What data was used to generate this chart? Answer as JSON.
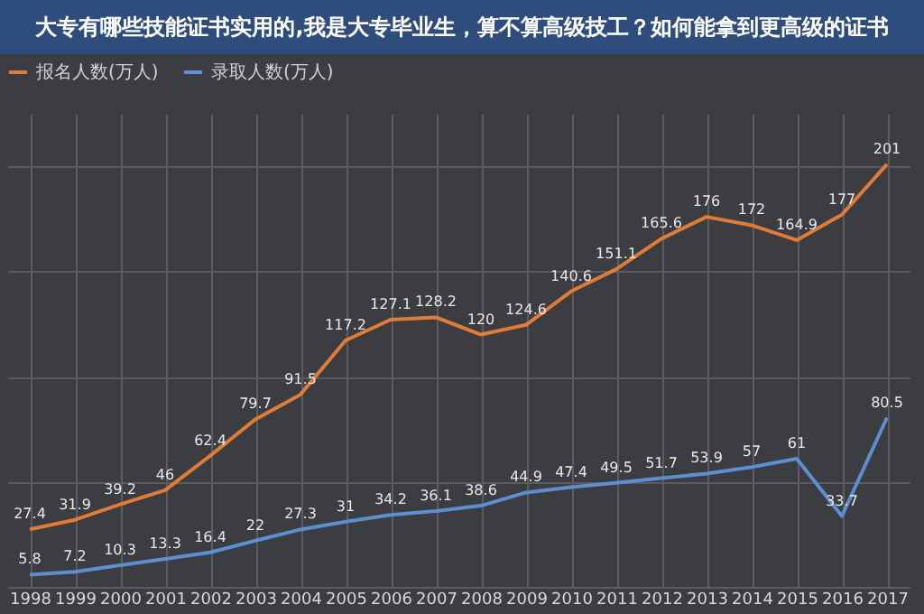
{
  "chart_data": {
    "type": "line",
    "title": "大专有哪些技能证书实用的,我是大专毕业生，算不算高级技工？如何能拿到更高级的证书",
    "categories": [
      "1998",
      "1999",
      "2000",
      "2001",
      "2002",
      "2003",
      "2004",
      "2005",
      "2006",
      "2007",
      "2008",
      "2009",
      "2010",
      "2011",
      "2012",
      "2013",
      "2014",
      "2015",
      "2016",
      "2017"
    ],
    "series": [
      {
        "name": "报名人数(万人)",
        "color": "#e07b39",
        "values": [
          27.4,
          31.9,
          39.2,
          46,
          62.4,
          79.7,
          91.5,
          117.2,
          127.1,
          128.2,
          120,
          124.6,
          140.6,
          151.1,
          165.6,
          176,
          172,
          164.9,
          177,
          201
        ]
      },
      {
        "name": "录取人数(万人)",
        "color": "#5b8fd0",
        "values": [
          5.8,
          7.2,
          10.3,
          13.3,
          16.4,
          22,
          27.3,
          31,
          34.2,
          36.1,
          38.6,
          44.9,
          47.4,
          49.5,
          51.7,
          53.9,
          57,
          61,
          33.7,
          80.5
        ]
      }
    ],
    "ylim": [
      0,
      225
    ],
    "yticks": [
      {
        "value": 0,
        "label": null
      },
      {
        "value": 50,
        "label": null
      },
      {
        "value": 100,
        "label": null
      },
      {
        "value": 150,
        "label": null
      },
      {
        "value": 200,
        "label": null
      }
    ],
    "grid": true,
    "legend": "top",
    "data_labels": true,
    "tick_labels": "x"
  }
}
